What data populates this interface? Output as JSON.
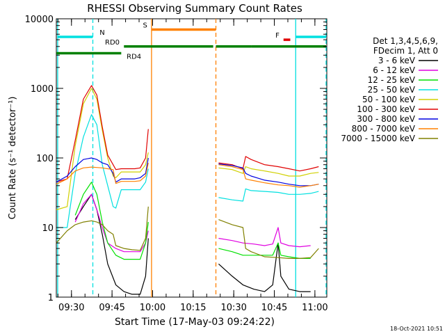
{
  "chart_data": {
    "type": "line",
    "title": "RHESSI Observing Summary Count Rates",
    "xlabel": "Start Time (17-May-03 09:24:22)",
    "ylabel": "Count Rate (s⁻¹ detector⁻¹)",
    "x_unit": "minutes since 09:24:22 (17-May-03)",
    "xlim": [
      0,
      100
    ],
    "ylim": [
      1,
      10000
    ],
    "yscale": "log",
    "x_ticks": [
      {
        "x": 5.6,
        "label": "09:30"
      },
      {
        "x": 20.6,
        "label": "09:45"
      },
      {
        "x": 35.6,
        "label": "10:00"
      },
      {
        "x": 50.6,
        "label": "10:15"
      },
      {
        "x": 65.6,
        "label": "10:30"
      },
      {
        "x": 80.6,
        "label": "10:45"
      },
      {
        "x": 95.6,
        "label": "11:00"
      }
    ],
    "y_ticks": [
      {
        "y": 1,
        "label": "1"
      },
      {
        "y": 10,
        "label": "10"
      },
      {
        "y": 100,
        "label": "100"
      },
      {
        "y": 1000,
        "label": "1000"
      },
      {
        "y": 10000,
        "label": "10000"
      }
    ],
    "legend": {
      "placement": "right",
      "header": [
        "Det 1,3,4,5,6,9,",
        "FDecim 1, Att 0"
      ]
    },
    "series": [
      {
        "name": "3 - 6 keV",
        "color": "#000000",
        "points": [
          [
            0,
            null
          ],
          [
            7,
            13
          ],
          [
            10,
            20
          ],
          [
            13,
            30
          ],
          [
            15,
            18
          ],
          [
            17,
            8
          ],
          [
            19,
            3
          ],
          [
            22,
            1.5
          ],
          [
            25,
            1.2
          ],
          [
            28,
            1.1
          ],
          [
            31,
            1.1
          ],
          [
            33,
            2
          ],
          [
            34,
            7
          ],
          [
            35,
            null
          ],
          [
            59,
            null
          ],
          [
            60,
            3
          ],
          [
            65,
            2
          ],
          [
            69,
            1.5
          ],
          [
            73,
            1.3
          ],
          [
            77,
            1.2
          ],
          [
            80,
            1.5
          ],
          [
            82,
            6
          ],
          [
            83,
            2
          ],
          [
            86,
            1.3
          ],
          [
            90,
            1.2
          ],
          [
            94,
            1.2
          ],
          [
            97,
            null
          ]
        ]
      },
      {
        "name": "6 - 12 keV",
        "color": "#e000e0",
        "points": [
          [
            0,
            null
          ],
          [
            7,
            12
          ],
          [
            10,
            22
          ],
          [
            13,
            30
          ],
          [
            15,
            18
          ],
          [
            17,
            10
          ],
          [
            19,
            6
          ],
          [
            22,
            5
          ],
          [
            25,
            4.5
          ],
          [
            28,
            4.5
          ],
          [
            31,
            4.5
          ],
          [
            33,
            6
          ],
          [
            34,
            9
          ],
          [
            35,
            null
          ],
          [
            59,
            null
          ],
          [
            60,
            7
          ],
          [
            65,
            6.5
          ],
          [
            69,
            6
          ],
          [
            73,
            5.8
          ],
          [
            77,
            5.5
          ],
          [
            80,
            5.8
          ],
          [
            82,
            10
          ],
          [
            83,
            6
          ],
          [
            86,
            5.5
          ],
          [
            90,
            5.3
          ],
          [
            94,
            5.5
          ],
          [
            97,
            null
          ]
        ]
      },
      {
        "name": "12 - 25 keV",
        "color": "#00e000",
        "points": [
          [
            0,
            null
          ],
          [
            7,
            15
          ],
          [
            10,
            30
          ],
          [
            13,
            45
          ],
          [
            15,
            30
          ],
          [
            17,
            12
          ],
          [
            19,
            6
          ],
          [
            22,
            4
          ],
          [
            25,
            3.5
          ],
          [
            28,
            3.5
          ],
          [
            31,
            3.5
          ],
          [
            33,
            6
          ],
          [
            34,
            12
          ],
          [
            35,
            null
          ],
          [
            59,
            null
          ],
          [
            60,
            5
          ],
          [
            65,
            4.5
          ],
          [
            69,
            4
          ],
          [
            73,
            4
          ],
          [
            77,
            4
          ],
          [
            80,
            4
          ],
          [
            82,
            6
          ],
          [
            83,
            4
          ],
          [
            86,
            3.8
          ],
          [
            90,
            3.6
          ],
          [
            94,
            3.6
          ],
          [
            97,
            null
          ]
        ]
      },
      {
        "name": "25 - 50 keV",
        "color": "#00e0e0",
        "points": [
          [
            0,
            10
          ],
          [
            4,
            10
          ],
          [
            7,
            60
          ],
          [
            10,
            200
          ],
          [
            13,
            420
          ],
          [
            15,
            300
          ],
          [
            17,
            80
          ],
          [
            19,
            40
          ],
          [
            21,
            20
          ],
          [
            22,
            19
          ],
          [
            24,
            35
          ],
          [
            26,
            35
          ],
          [
            29,
            35
          ],
          [
            31,
            35
          ],
          [
            33,
            45
          ],
          [
            34,
            70
          ],
          [
            35,
            null
          ],
          [
            59,
            null
          ],
          [
            60,
            27
          ],
          [
            65,
            25
          ],
          [
            69,
            24
          ],
          [
            70,
            36
          ],
          [
            72,
            34
          ],
          [
            77,
            33
          ],
          [
            82,
            32
          ],
          [
            86,
            30
          ],
          [
            90,
            30
          ],
          [
            94,
            31
          ],
          [
            97,
            33
          ]
        ]
      },
      {
        "name": "50 - 100 keV",
        "color": "#d0d000",
        "points": [
          [
            0,
            18
          ],
          [
            4,
            20
          ],
          [
            7,
            150
          ],
          [
            10,
            600
          ],
          [
            13,
            1000
          ],
          [
            15,
            700
          ],
          [
            17,
            250
          ],
          [
            19,
            100
          ],
          [
            21,
            55
          ],
          [
            22,
            52
          ],
          [
            24,
            63
          ],
          [
            26,
            63
          ],
          [
            29,
            63
          ],
          [
            31,
            63
          ],
          [
            33,
            80
          ],
          [
            34,
            120
          ],
          [
            35,
            null
          ],
          [
            59,
            null
          ],
          [
            60,
            72
          ],
          [
            65,
            68
          ],
          [
            69,
            60
          ],
          [
            70,
            75
          ],
          [
            72,
            70
          ],
          [
            77,
            65
          ],
          [
            82,
            60
          ],
          [
            86,
            55
          ],
          [
            90,
            55
          ],
          [
            94,
            60
          ],
          [
            97,
            62
          ]
        ]
      },
      {
        "name": "100 - 300 keV",
        "color": "#e00000",
        "points": [
          [
            0,
            45
          ],
          [
            4,
            50
          ],
          [
            7,
            180
          ],
          [
            10,
            700
          ],
          [
            13,
            1100
          ],
          [
            15,
            800
          ],
          [
            17,
            280
          ],
          [
            19,
            110
          ],
          [
            21,
            80
          ],
          [
            22,
            68
          ],
          [
            24,
            70
          ],
          [
            26,
            70
          ],
          [
            29,
            70
          ],
          [
            31,
            72
          ],
          [
            33,
            100
          ],
          [
            34,
            260
          ],
          [
            35,
            null
          ],
          [
            59,
            null
          ],
          [
            60,
            85
          ],
          [
            65,
            80
          ],
          [
            69,
            70
          ],
          [
            70,
            105
          ],
          [
            72,
            95
          ],
          [
            77,
            80
          ],
          [
            82,
            75
          ],
          [
            86,
            70
          ],
          [
            90,
            65
          ],
          [
            94,
            70
          ],
          [
            97,
            75
          ]
        ]
      },
      {
        "name": "300 - 800 keV",
        "color": "#0000e0",
        "points": [
          [
            0,
            45
          ],
          [
            4,
            55
          ],
          [
            7,
            75
          ],
          [
            10,
            95
          ],
          [
            13,
            100
          ],
          [
            15,
            95
          ],
          [
            17,
            85
          ],
          [
            19,
            80
          ],
          [
            21,
            60
          ],
          [
            22,
            45
          ],
          [
            24,
            50
          ],
          [
            26,
            50
          ],
          [
            29,
            50
          ],
          [
            31,
            52
          ],
          [
            33,
            60
          ],
          [
            34,
            100
          ],
          [
            35,
            null
          ],
          [
            59,
            null
          ],
          [
            60,
            82
          ],
          [
            65,
            78
          ],
          [
            69,
            72
          ],
          [
            70,
            60
          ],
          [
            72,
            55
          ],
          [
            77,
            48
          ],
          [
            82,
            45
          ],
          [
            86,
            42
          ],
          [
            90,
            40
          ],
          [
            94,
            40
          ],
          [
            97,
            42
          ]
        ]
      },
      {
        "name": "800 - 7000 keV",
        "color": "#ff8000",
        "points": [
          [
            0,
            42
          ],
          [
            4,
            50
          ],
          [
            7,
            65
          ],
          [
            10,
            72
          ],
          [
            13,
            74
          ],
          [
            15,
            73
          ],
          [
            17,
            72
          ],
          [
            19,
            70
          ],
          [
            21,
            68
          ],
          [
            22,
            43
          ],
          [
            24,
            46
          ],
          [
            26,
            46
          ],
          [
            29,
            46
          ],
          [
            31,
            47
          ],
          [
            33,
            55
          ],
          [
            34,
            85
          ],
          [
            35,
            null
          ],
          [
            59,
            null
          ],
          [
            60,
            80
          ],
          [
            65,
            75
          ],
          [
            69,
            68
          ],
          [
            70,
            50
          ],
          [
            72,
            48
          ],
          [
            77,
            44
          ],
          [
            82,
            41
          ],
          [
            86,
            40
          ],
          [
            90,
            38
          ],
          [
            94,
            40
          ],
          [
            97,
            42
          ]
        ]
      },
      {
        "name": "7000 - 15000 keV",
        "color": "#808000",
        "points": [
          [
            0,
            6
          ],
          [
            4,
            9
          ],
          [
            7,
            11
          ],
          [
            10,
            12
          ],
          [
            13,
            12.5
          ],
          [
            15,
            12
          ],
          [
            17,
            11
          ],
          [
            19,
            9
          ],
          [
            21,
            8
          ],
          [
            22,
            5.5
          ],
          [
            25,
            5
          ],
          [
            28,
            4.8
          ],
          [
            31,
            4.7
          ],
          [
            33,
            7
          ],
          [
            34,
            20
          ],
          [
            35,
            null
          ],
          [
            59,
            null
          ],
          [
            60,
            13
          ],
          [
            65,
            11
          ],
          [
            69,
            10
          ],
          [
            70,
            5
          ],
          [
            72,
            4.5
          ],
          [
            77,
            3.8
          ],
          [
            82,
            3.7
          ],
          [
            86,
            3.6
          ],
          [
            90,
            3.6
          ],
          [
            94,
            3.7
          ],
          [
            97,
            5
          ]
        ]
      }
    ],
    "vertical_markers": [
      {
        "x": 0.5,
        "color": "#00e0e0",
        "style": "solid"
      },
      {
        "x": 13.5,
        "color": "#00e0e0",
        "style": "dashed"
      },
      {
        "x": 35.2,
        "color": "#ff8000",
        "style": "solid"
      },
      {
        "x": 59.0,
        "color": "#ff8000",
        "style": "dashed"
      },
      {
        "x": 88.5,
        "color": "#00e0e0",
        "style": "solid"
      },
      {
        "x": 101.0,
        "color": "#00e0e0",
        "style": "dashed"
      }
    ],
    "flag_bars": [
      {
        "label": "N",
        "color": "#00e0e0",
        "y": 5500,
        "segments": [
          [
            0.5,
            13.5
          ],
          [
            88.5,
            101
          ]
        ],
        "label_x": 16
      },
      {
        "label": "S",
        "color": "#ff8000",
        "y": 7000,
        "segments": [
          [
            35.2,
            59
          ]
        ],
        "label_x": 32
      },
      {
        "label": "F",
        "color": "#e00000",
        "y": 5000,
        "segments": [
          [
            84,
            86.5
          ]
        ],
        "label_x": 81
      },
      {
        "label": "RD0",
        "color": "#008000",
        "y": 4000,
        "segments": [
          [
            25,
            58
          ],
          [
            59,
            72
          ],
          [
            72,
            101
          ]
        ],
        "label_x": 18
      },
      {
        "label": "RD4",
        "color": "#008000",
        "y": 3200,
        "segments": [
          [
            0,
            24
          ]
        ],
        "label_x": 26
      }
    ],
    "footer_date": "18-Oct-2021 10:51"
  }
}
